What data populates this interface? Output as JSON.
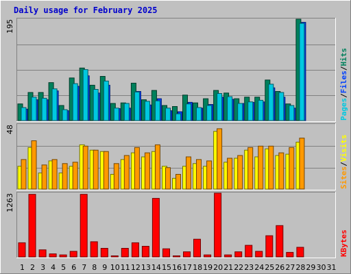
{
  "title": "Daily usage for February 2025",
  "colors": {
    "background": "#c0c0c0",
    "title": "#0000cc",
    "hits": "#00805c",
    "files": "#0040ff",
    "pages": "#00c8e0",
    "visits": "#ffff00",
    "sites": "#ff9900",
    "kbytes": "#ff0000",
    "weekend_day": "#008040",
    "weekday": "#000000"
  },
  "chart_data": [
    {
      "type": "bar",
      "panel": "hits-files-pages",
      "max_label": "195",
      "ylim": [
        0,
        195
      ],
      "legend": [
        "Pages",
        "/",
        "Files",
        "/",
        "Hits"
      ],
      "categories": [
        "1",
        "2",
        "3",
        "4",
        "5",
        "6",
        "7",
        "8",
        "9",
        "10",
        "11",
        "12",
        "13",
        "14",
        "15",
        "16",
        "17",
        "18",
        "19",
        "20",
        "21",
        "22",
        "23",
        "24",
        "25",
        "26",
        "27",
        "28",
        "29",
        "30",
        "31"
      ],
      "series": [
        {
          "name": "Hits",
          "values": [
            32,
            54,
            54,
            73,
            29,
            82,
            101,
            68,
            85,
            33,
            34,
            72,
            40,
            58,
            29,
            27,
            49,
            34,
            42,
            58,
            53,
            42,
            45,
            45,
            78,
            56,
            32,
            195,
            0,
            0,
            0
          ]
        },
        {
          "name": "Files",
          "values": [
            22,
            40,
            40,
            57,
            19,
            66,
            86,
            53,
            68,
            23,
            24,
            56,
            30,
            42,
            19,
            17,
            35,
            24,
            31,
            45,
            41,
            33,
            35,
            36,
            63,
            45,
            24,
            189,
            0,
            0,
            0
          ]
        },
        {
          "name": "Pages",
          "values": [
            25,
            45,
            43,
            61,
            21,
            71,
            98,
            60,
            76,
            24,
            33,
            55,
            37,
            38,
            24,
            13,
            32,
            25,
            29,
            52,
            46,
            33,
            36,
            39,
            70,
            54,
            29,
            187,
            0,
            0,
            0
          ]
        }
      ]
    },
    {
      "type": "bar",
      "panel": "visits-sites",
      "max_label": "48",
      "ylim": [
        0,
        48
      ],
      "legend": [
        "Sites",
        "/",
        "Visits"
      ],
      "categories": [
        "1",
        "2",
        "3",
        "4",
        "5",
        "6",
        "7",
        "8",
        "9",
        "10",
        "11",
        "12",
        "13",
        "14",
        "15",
        "16",
        "17",
        "18",
        "19",
        "20",
        "21",
        "22",
        "23",
        "24",
        "25",
        "26",
        "27",
        "28",
        "29",
        "30",
        "31"
      ],
      "series": [
        {
          "name": "Visits",
          "values": [
            17,
            31,
            12,
            21,
            12,
            17,
            33,
            29,
            28,
            11,
            22,
            27,
            24,
            28,
            17,
            8,
            17,
            19,
            17,
            43,
            20,
            23,
            29,
            24,
            30,
            25,
            26,
            35,
            0,
            0,
            0
          ]
        },
        {
          "name": "Sites",
          "values": [
            22,
            36,
            18,
            22,
            19,
            20,
            32,
            29,
            28,
            19,
            25,
            31,
            27,
            33,
            16,
            11,
            24,
            22,
            21,
            45,
            23,
            25,
            31,
            32,
            32,
            27,
            31,
            38,
            0,
            0,
            0
          ]
        }
      ]
    },
    {
      "type": "bar",
      "panel": "kbytes",
      "max_label": "1263",
      "ylim": [
        0,
        1263
      ],
      "legend": [
        "KBytes"
      ],
      "categories": [
        "1",
        "2",
        "3",
        "4",
        "5",
        "6",
        "7",
        "8",
        "9",
        "10",
        "11",
        "12",
        "13",
        "14",
        "15",
        "16",
        "17",
        "18",
        "19",
        "20",
        "21",
        "22",
        "23",
        "24",
        "25",
        "26",
        "27",
        "28",
        "29",
        "30",
        "31"
      ],
      "series": [
        {
          "name": "KBytes",
          "values": [
            280,
            1240,
            140,
            60,
            40,
            110,
            1240,
            300,
            170,
            20,
            170,
            280,
            210,
            1160,
            160,
            20,
            100,
            350,
            40,
            1263,
            40,
            100,
            230,
            110,
            420,
            620,
            90,
            190,
            0,
            0,
            0
          ]
        }
      ]
    }
  ],
  "day_labels": [
    {
      "text": "1",
      "weekend": false
    },
    {
      "text": "2",
      "weekend": true
    },
    {
      "text": "3",
      "weekend": false
    },
    {
      "text": "4",
      "weekend": false
    },
    {
      "text": "5",
      "weekend": false
    },
    {
      "text": "6",
      "weekend": false
    },
    {
      "text": "7",
      "weekend": false
    },
    {
      "text": "8",
      "weekend": true
    },
    {
      "text": "9",
      "weekend": true
    },
    {
      "text": "10",
      "weekend": false
    },
    {
      "text": "11",
      "weekend": false
    },
    {
      "text": "12",
      "weekend": false
    },
    {
      "text": "13",
      "weekend": false
    },
    {
      "text": "14",
      "weekend": false
    },
    {
      "text": "15",
      "weekend": true
    },
    {
      "text": "16",
      "weekend": true
    },
    {
      "text": "17",
      "weekend": false
    },
    {
      "text": "18",
      "weekend": false
    },
    {
      "text": "19",
      "weekend": false
    },
    {
      "text": "20",
      "weekend": false
    },
    {
      "text": "21",
      "weekend": false
    },
    {
      "text": "22",
      "weekend": true
    },
    {
      "text": "23",
      "weekend": true
    },
    {
      "text": "24",
      "weekend": false
    },
    {
      "text": "25",
      "weekend": false
    },
    {
      "text": "26",
      "weekend": false
    },
    {
      "text": "27",
      "weekend": false
    },
    {
      "text": "28",
      "weekend": false
    },
    {
      "text": "29",
      "weekend": true
    },
    {
      "text": "30",
      "weekend": true
    },
    {
      "text": "31",
      "weekend": false
    }
  ]
}
